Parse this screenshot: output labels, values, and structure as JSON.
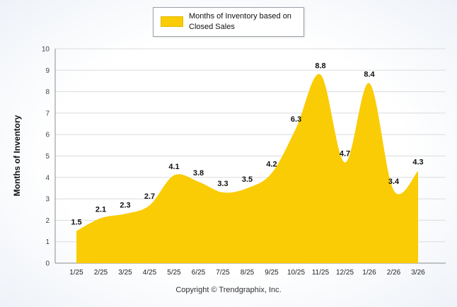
{
  "chart_data": {
    "type": "area",
    "title": "",
    "legend": "Months of Inventory based on Closed Sales",
    "ylabel": "Months of Inventory",
    "xlabel": "",
    "ylim": [
      0,
      10
    ],
    "y_ticks": [
      0,
      1,
      2,
      3,
      4,
      5,
      6,
      7,
      8,
      9,
      10
    ],
    "categories": [
      "1/25",
      "2/25",
      "3/25",
      "4/25",
      "5/25",
      "6/25",
      "7/25",
      "8/25",
      "9/25",
      "10/25",
      "11/25",
      "12/25",
      "1/26",
      "2/26",
      "3/26"
    ],
    "values": [
      1.5,
      2.1,
      2.3,
      2.7,
      4.1,
      3.8,
      3.3,
      3.5,
      4.2,
      6.3,
      8.8,
      4.7,
      8.4,
      3.4,
      4.3
    ],
    "series_color": "#FACC05",
    "grid": true,
    "legend_position": "top"
  },
  "footer": {
    "copyright": "Copyright © Trendgraphix, Inc."
  }
}
